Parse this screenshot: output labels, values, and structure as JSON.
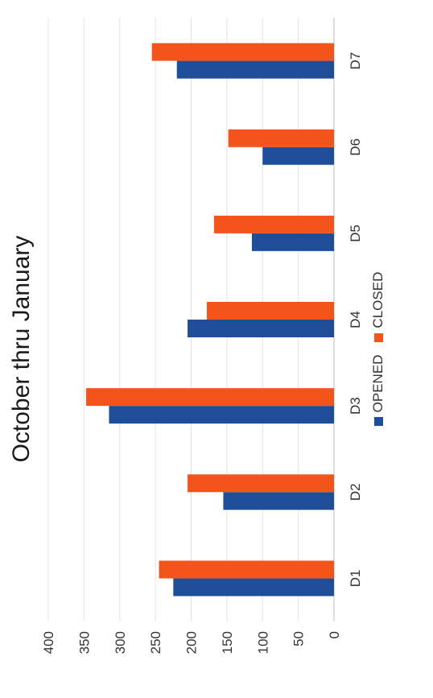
{
  "chart_data": {
    "type": "bar",
    "orientation": "vertical",
    "title": "October thru January",
    "categories": [
      "D1",
      "D2",
      "D3",
      "D4",
      "D5",
      "D6",
      "D7"
    ],
    "series": [
      {
        "name": "OPENED",
        "color": "#1f4e99",
        "values": [
          225,
          155,
          315,
          205,
          115,
          100,
          220
        ]
      },
      {
        "name": "CLOSED",
        "color": "#f2541c",
        "values": [
          245,
          205,
          347,
          178,
          168,
          148,
          255
        ]
      }
    ],
    "ylim": [
      0,
      400
    ],
    "yticks": [
      0,
      50,
      100,
      150,
      200,
      250,
      300,
      350,
      400
    ],
    "grid": true,
    "legend": "bottom"
  }
}
